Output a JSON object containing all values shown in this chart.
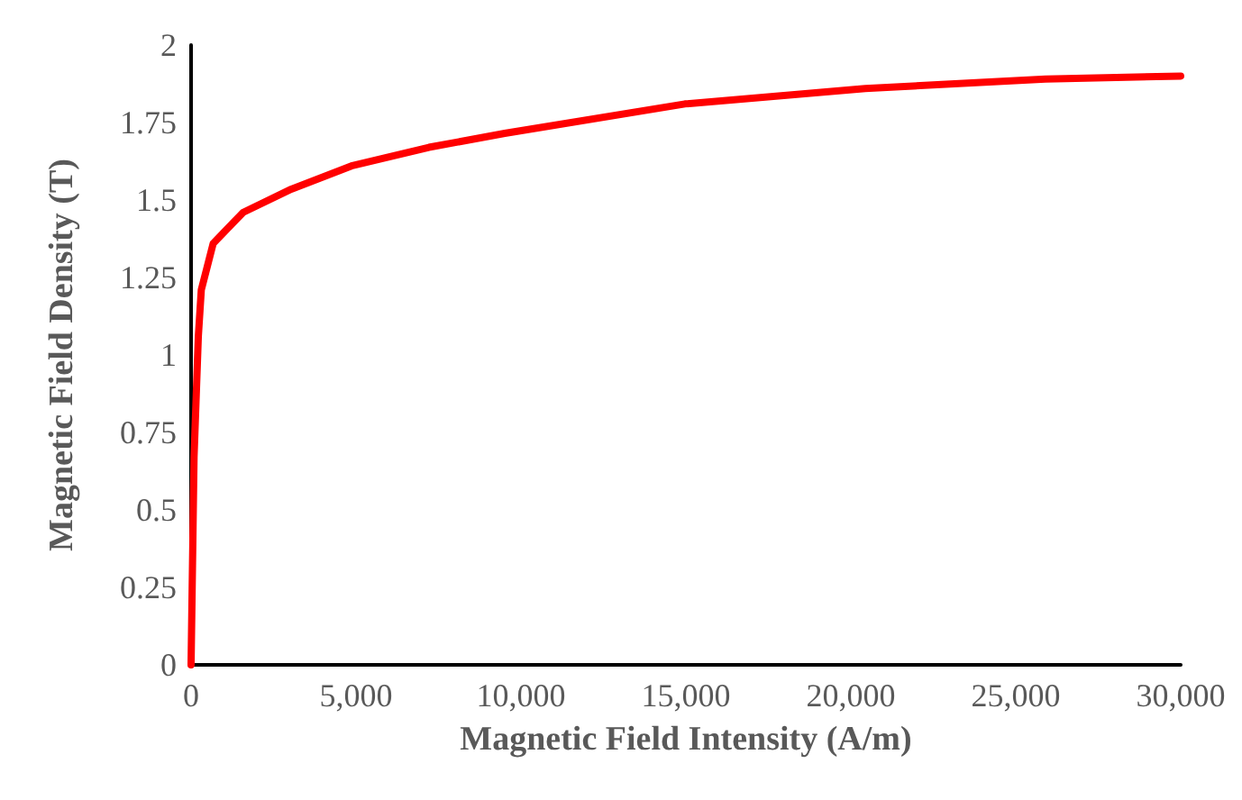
{
  "chart_data": {
    "type": "line",
    "xlabel": "Magnetic Field Intensity (A/m)",
    "ylabel": "Magnetic Field Density (T)",
    "series": [
      {
        "color": "#ff0000",
        "x": [
          0,
          90,
          220,
          310,
          670,
          1580,
          3040,
          4860,
          7210,
          9510,
          14970,
          20440,
          25900,
          30000
        ],
        "values": [
          0,
          0.67,
          1.06,
          1.21,
          1.36,
          1.46,
          1.535,
          1.61,
          1.67,
          1.715,
          1.81,
          1.86,
          1.89,
          1.9
        ]
      }
    ],
    "xlim": [
      0,
      30000
    ],
    "xticks": [
      {
        "value": 0,
        "label": "0"
      },
      {
        "value": 5000,
        "label": "5,000"
      },
      {
        "value": 10000,
        "label": "10,000"
      },
      {
        "value": 15000,
        "label": "15,000"
      },
      {
        "value": 20000,
        "label": "20,000"
      },
      {
        "value": 25000,
        "label": "25,000"
      },
      {
        "value": 30000,
        "label": "30,000"
      }
    ],
    "ylim": [
      0,
      2
    ],
    "yticks": [
      0,
      0.25,
      0.5,
      0.75,
      1,
      1.25,
      1.5,
      1.75,
      2
    ],
    "grid": false,
    "marker": "none",
    "line_style": "solid"
  }
}
